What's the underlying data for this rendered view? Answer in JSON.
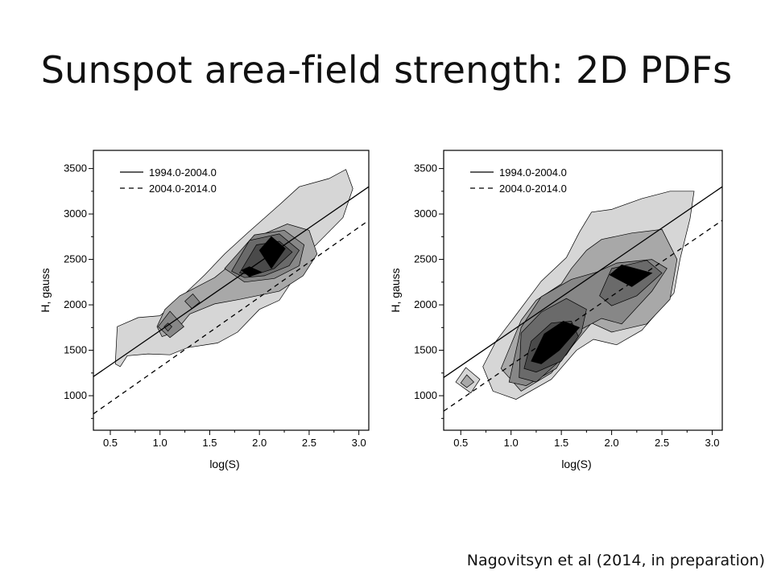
{
  "slide": {
    "title": "Sunspot area-field strength: 2D PDFs",
    "credit": "Nagovitsyn et al (2014, in preparation)"
  },
  "colors": {
    "levels": [
      "#d6d6d6",
      "#a8a8a8",
      "#878787",
      "#6a6a6a",
      "#4a4a4a",
      "#000000"
    ],
    "outline": "#000000"
  },
  "chart_data": [
    {
      "type": "contour",
      "xlabel": "log(S)",
      "ylabel": "H, gauss",
      "xlim": [
        0.33,
        3.1
      ],
      "ylim": [
        620,
        3700
      ],
      "xticks": [
        "0.5",
        "1.0",
        "1.5",
        "2.0",
        "2.5",
        "3.0"
      ],
      "xtick_values": [
        0.5,
        1.0,
        1.5,
        2.0,
        2.5,
        3.0
      ],
      "yticks": [
        "1000",
        "1500",
        "2000",
        "2500",
        "3000",
        "3500"
      ],
      "ytick_values": [
        1000,
        1500,
        2000,
        2500,
        3000,
        3500
      ],
      "legend": {
        "position": "top-left",
        "entries": [
          {
            "label": "1994.0-2004.0",
            "style": "solid"
          },
          {
            "label": "2004.0-2014.0",
            "style": "dashed"
          }
        ]
      },
      "lines": [
        {
          "label": "1994.0-2004.0",
          "style": "solid",
          "points": [
            [
              0.33,
              1210
            ],
            [
              3.1,
              3300
            ]
          ]
        },
        {
          "label": "2004.0-2014.0",
          "style": "dashed",
          "points": [
            [
              0.33,
              800
            ],
            [
              3.1,
              2930
            ]
          ]
        }
      ],
      "contours": [
        {
          "level": 1,
          "polygons": [
            [
              [
                0.55,
                1350
              ],
              [
                0.57,
                1760
              ],
              [
                0.78,
                1860
              ],
              [
                1.0,
                1880
              ],
              [
                1.2,
                2070
              ],
              [
                1.45,
                2330
              ],
              [
                1.65,
                2560
              ],
              [
                1.88,
                2790
              ],
              [
                2.2,
                3100
              ],
              [
                2.4,
                3300
              ],
              [
                2.7,
                3390
              ],
              [
                2.87,
                3490
              ],
              [
                2.94,
                3280
              ],
              [
                2.84,
                2960
              ],
              [
                2.55,
                2640
              ],
              [
                2.4,
                2380
              ],
              [
                2.2,
                2050
              ],
              [
                2.0,
                1950
              ],
              [
                1.78,
                1700
              ],
              [
                1.58,
                1580
              ],
              [
                1.28,
                1530
              ],
              [
                1.1,
                1450
              ],
              [
                0.88,
                1460
              ],
              [
                0.67,
                1440
              ],
              [
                0.6,
                1320
              ]
            ]
          ]
        },
        {
          "level": 2,
          "polygons": [
            [
              [
                0.97,
                1760
              ],
              [
                1.05,
                1950
              ],
              [
                1.2,
                2100
              ],
              [
                1.55,
                2300
              ],
              [
                1.8,
                2520
              ],
              [
                2.0,
                2760
              ],
              [
                2.28,
                2890
              ],
              [
                2.5,
                2820
              ],
              [
                2.58,
                2560
              ],
              [
                2.44,
                2320
              ],
              [
                2.2,
                2150
              ],
              [
                1.8,
                2060
              ],
              [
                1.55,
                2010
              ],
              [
                1.3,
                1900
              ],
              [
                1.15,
                1700
              ],
              [
                1.02,
                1650
              ]
            ]
          ]
        },
        {
          "level": 3,
          "polygons": [
            [
              [
                1.65,
                2400
              ],
              [
                1.78,
                2560
              ],
              [
                1.95,
                2770
              ],
              [
                2.25,
                2820
              ],
              [
                2.45,
                2660
              ],
              [
                2.4,
                2430
              ],
              [
                2.15,
                2290
              ],
              [
                1.85,
                2250
              ]
            ],
            [
              [
                0.98,
                1760
              ],
              [
                1.1,
                1930
              ],
              [
                1.24,
                1760
              ],
              [
                1.1,
                1640
              ]
            ],
            [
              [
                1.25,
                2040
              ],
              [
                1.33,
                2120
              ],
              [
                1.4,
                2030
              ],
              [
                1.32,
                1960
              ]
            ]
          ]
        },
        {
          "level": 4,
          "polygons": [
            [
              [
                1.72,
                2370
              ],
              [
                1.9,
                2710
              ],
              [
                2.2,
                2780
              ],
              [
                2.4,
                2600
              ],
              [
                2.3,
                2430
              ],
              [
                2.05,
                2320
              ],
              [
                1.85,
                2300
              ]
            ],
            [
              [
                1.04,
                1760
              ],
              [
                1.08,
                1800
              ],
              [
                1.12,
                1760
              ],
              [
                1.08,
                1710
              ]
            ]
          ]
        },
        {
          "level": 5,
          "polygons": [
            [
              [
                1.8,
                2350
              ],
              [
                1.97,
                2660
              ],
              [
                2.2,
                2700
              ],
              [
                2.33,
                2580
              ],
              [
                2.15,
                2400
              ],
              [
                1.95,
                2330
              ]
            ]
          ]
        },
        {
          "level": 6,
          "polygons": [
            [
              [
                2.0,
                2600
              ],
              [
                2.12,
                2750
              ],
              [
                2.26,
                2620
              ],
              [
                2.12,
                2400
              ]
            ],
            [
              [
                1.82,
                2380
              ],
              [
                1.9,
                2420
              ],
              [
                2.02,
                2360
              ],
              [
                1.9,
                2310
              ]
            ]
          ]
        }
      ]
    },
    {
      "type": "contour",
      "xlabel": "log(S)",
      "ylabel": "H, gauss",
      "xlim": [
        0.33,
        3.1
      ],
      "ylim": [
        620,
        3700
      ],
      "xticks": [
        "0.5",
        "1.0",
        "1.5",
        "2.0",
        "2.5",
        "3.0"
      ],
      "xtick_values": [
        0.5,
        1.0,
        1.5,
        2.0,
        2.5,
        3.0
      ],
      "yticks": [
        "1000",
        "1500",
        "2000",
        "2500",
        "3000",
        "3500"
      ],
      "ytick_values": [
        1000,
        1500,
        2000,
        2500,
        3000,
        3500
      ],
      "legend": {
        "position": "top-left",
        "entries": [
          {
            "label": "1994.0-2004.0",
            "style": "solid"
          },
          {
            "label": "2004.0-2014.0",
            "style": "dashed"
          }
        ]
      },
      "lines": [
        {
          "label": "1994.0-2004.0",
          "style": "solid",
          "points": [
            [
              0.33,
              1200
            ],
            [
              3.1,
              3300
            ]
          ]
        },
        {
          "label": "2004.0-2014.0",
          "style": "dashed",
          "points": [
            [
              0.33,
              830
            ],
            [
              3.1,
              2930
            ]
          ]
        }
      ],
      "contours": [
        {
          "level": 1,
          "polygons": [
            [
              [
                0.72,
                1320
              ],
              [
                0.85,
                1600
              ],
              [
                1.05,
                1890
              ],
              [
                1.3,
                2260
              ],
              [
                1.55,
                2520
              ],
              [
                1.68,
                2800
              ],
              [
                1.8,
                3020
              ],
              [
                2.0,
                3050
              ],
              [
                2.3,
                3170
              ],
              [
                2.58,
                3250
              ],
              [
                2.82,
                3250
              ],
              [
                2.78,
                2950
              ],
              [
                2.68,
                2500
              ],
              [
                2.62,
                2130
              ],
              [
                2.3,
                1720
              ],
              [
                2.05,
                1560
              ],
              [
                1.82,
                1620
              ],
              [
                1.65,
                1500
              ],
              [
                1.4,
                1180
              ],
              [
                1.05,
                960
              ],
              [
                0.82,
                1050
              ]
            ],
            [
              [
                0.45,
                1150
              ],
              [
                0.55,
                1310
              ],
              [
                0.69,
                1180
              ],
              [
                0.6,
                1030
              ]
            ]
          ]
        },
        {
          "level": 2,
          "polygons": [
            [
              [
                0.9,
                1300
              ],
              [
                1.1,
                1830
              ],
              [
                1.25,
                2050
              ],
              [
                1.5,
                2230
              ],
              [
                1.6,
                2400
              ],
              [
                1.75,
                2600
              ],
              [
                1.9,
                2720
              ],
              [
                2.2,
                2790
              ],
              [
                2.5,
                2830
              ],
              [
                2.65,
                2500
              ],
              [
                2.58,
                2060
              ],
              [
                2.35,
                1790
              ],
              [
                2.0,
                1700
              ],
              [
                1.8,
                1800
              ],
              [
                1.62,
                1560
              ],
              [
                1.4,
                1250
              ],
              [
                1.1,
                1050
              ]
            ],
            [
              [
                0.5,
                1140
              ],
              [
                0.56,
                1230
              ],
              [
                0.63,
                1150
              ],
              [
                0.56,
                1090
              ]
            ]
          ]
        },
        {
          "level": 3,
          "polygons": [
            [
              [
                0.98,
                1150
              ],
              [
                1.1,
                1750
              ],
              [
                1.3,
                2090
              ],
              [
                1.6,
                2280
              ],
              [
                1.85,
                2360
              ],
              [
                2.05,
                2460
              ],
              [
                2.4,
                2500
              ],
              [
                2.55,
                2400
              ],
              [
                2.4,
                2150
              ],
              [
                2.1,
                1790
              ],
              [
                1.9,
                1850
              ],
              [
                1.68,
                1720
              ],
              [
                1.45,
                1300
              ],
              [
                1.15,
                1110
              ]
            ]
          ]
        },
        {
          "level": 4,
          "polygons": [
            [
              [
                1.08,
                1200
              ],
              [
                1.1,
                1690
              ],
              [
                1.3,
                1920
              ],
              [
                1.55,
                2070
              ],
              [
                1.75,
                1950
              ],
              [
                1.7,
                1700
              ],
              [
                1.55,
                1450
              ],
              [
                1.25,
                1150
              ]
            ],
            [
              [
                1.88,
                2100
              ],
              [
                2.0,
                2400
              ],
              [
                2.35,
                2490
              ],
              [
                2.5,
                2350
              ],
              [
                2.25,
                2100
              ],
              [
                2.0,
                1990
              ]
            ]
          ]
        },
        {
          "level": 5,
          "polygons": [
            [
              [
                1.13,
                1300
              ],
              [
                1.2,
                1600
              ],
              [
                1.4,
                1800
              ],
              [
                1.6,
                1820
              ],
              [
                1.67,
                1650
              ],
              [
                1.5,
                1380
              ],
              [
                1.25,
                1260
              ]
            ]
          ]
        },
        {
          "level": 6,
          "polygons": [
            [
              [
                1.2,
                1380
              ],
              [
                1.33,
                1680
              ],
              [
                1.52,
                1820
              ],
              [
                1.68,
                1750
              ],
              [
                1.48,
                1500
              ],
              [
                1.3,
                1350
              ]
            ],
            [
              [
                1.98,
                2330
              ],
              [
                2.1,
                2440
              ],
              [
                2.4,
                2350
              ],
              [
                2.2,
                2200
              ]
            ]
          ]
        }
      ]
    }
  ]
}
